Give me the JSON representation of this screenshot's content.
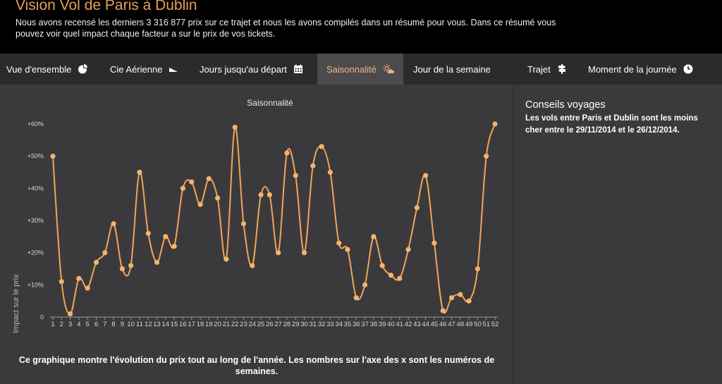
{
  "header": {
    "brand": "Vision Vol",
    "route": " de Paris à Dublin",
    "description": "Nous avons recensé les derniers 3 316 877 prix sur ce trajet et nous les avons compilés dans un résumé pour vous. Dans ce résumé vous pouvez voir quel impact chaque facteur a sur le prix de vos tickets."
  },
  "tabs": [
    {
      "label": "Vue d'ensemble",
      "icon": "pie-chart-icon"
    },
    {
      "label": "Cie Aérienne",
      "icon": "airplane-icon"
    },
    {
      "label": "Jours jusqu'au départ",
      "icon": "calendar-icon"
    },
    {
      "label": "Saisonnalité",
      "icon": "weather-icon",
      "active": true
    },
    {
      "label": "Jour de la semaine",
      "icon": ""
    },
    {
      "label": "Trajet",
      "icon": "route-icon"
    },
    {
      "label": "Moment de la journée",
      "icon": "clock-icon"
    }
  ],
  "colors": {
    "accent": "#f2a553",
    "active_tab_text": "#f0b680",
    "brand": "#e8a05a"
  },
  "chart_data": {
    "type": "line",
    "title": "Saisonnalité",
    "ylabel": "Impact sur le prix",
    "xlabel": "",
    "ylim": [
      0,
      60
    ],
    "yticks": [
      "0",
      "+10%",
      "+20%",
      "+30%",
      "+40%",
      "+50%",
      "+60%"
    ],
    "x": [
      1,
      2,
      3,
      4,
      5,
      6,
      7,
      8,
      9,
      10,
      11,
      12,
      13,
      14,
      15,
      16,
      17,
      18,
      19,
      20,
      21,
      22,
      23,
      24,
      25,
      26,
      27,
      28,
      29,
      30,
      31,
      32,
      33,
      34,
      35,
      36,
      37,
      38,
      39,
      40,
      41,
      42,
      43,
      44,
      45,
      46,
      47,
      48,
      49,
      50,
      51,
      52
    ],
    "values": [
      50,
      11,
      1,
      12,
      9,
      17,
      20,
      29,
      15,
      16,
      45,
      26,
      17,
      25,
      22,
      40,
      42,
      35,
      43,
      37,
      18,
      59,
      29,
      16,
      38,
      38,
      20,
      51,
      44,
      20,
      47,
      53,
      45,
      23,
      21,
      6,
      10,
      25,
      16,
      13,
      12,
      21,
      34,
      44,
      23,
      2,
      6,
      7,
      5,
      15,
      50,
      60
    ],
    "grid": false
  },
  "side": {
    "title": "Conseils voyages",
    "text": "Les vols entre Paris et Dublin sont les moins cher entre le 29/11/2014 et le 26/12/2014."
  },
  "caption": "Ce graphique montre l'évolution du prix tout au long de l'année. Les nombres sur l'axe des x sont les numéros de semaines."
}
